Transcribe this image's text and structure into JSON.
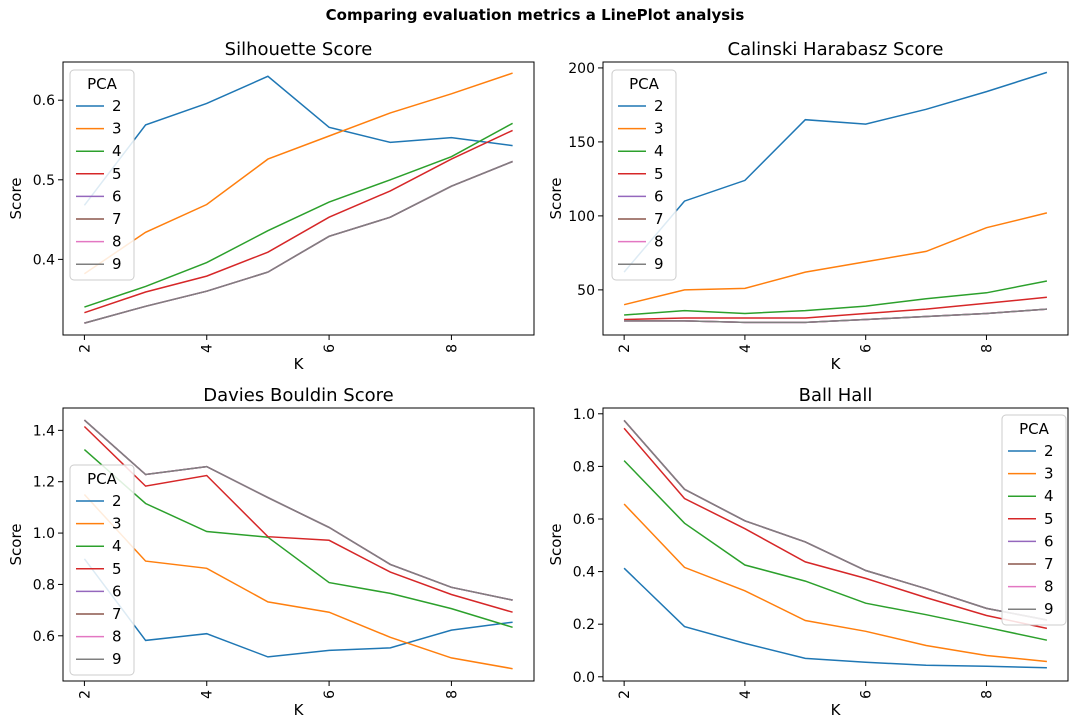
{
  "suptitle": "Comparing evaluation metrics a LinePlot analysis",
  "colors": {
    "2": "#1f77b4",
    "3": "#ff7f0e",
    "4": "#2ca02c",
    "5": "#d62728",
    "6": "#9467bd",
    "7": "#8c564b",
    "8": "#e377c2",
    "9": "#7f7f7f"
  },
  "chart_data": [
    {
      "type": "line",
      "title": "Silhouette Score",
      "xlabel": "K",
      "ylabel": "Score",
      "x": [
        2,
        3,
        4,
        5,
        6,
        7,
        8,
        9
      ],
      "xlim": [
        1.65,
        9.35
      ],
      "ylim": [
        0.305,
        0.648
      ],
      "xticks": [
        2,
        4,
        6,
        8
      ],
      "yticks": [
        0.4,
        0.5,
        0.6
      ],
      "ytick_labels": [
        "0.4",
        "0.5",
        "0.6"
      ],
      "legend": {
        "title": "PCA",
        "placement": "upper left"
      },
      "series": [
        {
          "name": "2",
          "values": [
            0.468,
            0.569,
            0.596,
            0.63,
            0.566,
            0.547,
            0.553,
            0.543
          ]
        },
        {
          "name": "3",
          "values": [
            0.382,
            0.434,
            0.469,
            0.526,
            0.555,
            0.584,
            0.608,
            0.634
          ]
        },
        {
          "name": "4",
          "values": [
            0.34,
            0.366,
            0.396,
            0.436,
            0.472,
            0.5,
            0.529,
            0.571
          ]
        },
        {
          "name": "5",
          "values": [
            0.333,
            0.359,
            0.379,
            0.409,
            0.453,
            0.486,
            0.526,
            0.562
          ]
        },
        {
          "name": "6",
          "values": [
            0.32,
            0.341,
            0.36,
            0.384,
            0.429,
            0.453,
            0.492,
            0.523
          ]
        },
        {
          "name": "7",
          "values": [
            0.32,
            0.341,
            0.36,
            0.384,
            0.429,
            0.453,
            0.492,
            0.523
          ]
        },
        {
          "name": "8",
          "values": [
            0.32,
            0.341,
            0.36,
            0.384,
            0.429,
            0.453,
            0.492,
            0.523
          ]
        },
        {
          "name": "9",
          "values": [
            0.32,
            0.341,
            0.36,
            0.384,
            0.429,
            0.453,
            0.492,
            0.523
          ]
        }
      ]
    },
    {
      "type": "line",
      "title": "Calinski Harabasz Score",
      "xlabel": "K",
      "ylabel": "Score",
      "x": [
        2,
        3,
        4,
        5,
        6,
        7,
        8,
        9
      ],
      "xlim": [
        1.65,
        9.35
      ],
      "ylim": [
        19.5,
        204
      ],
      "xticks": [
        2,
        4,
        6,
        8
      ],
      "yticks": [
        50,
        100,
        150,
        200
      ],
      "ytick_labels": [
        "50",
        "100",
        "150",
        "200"
      ],
      "legend": {
        "title": "PCA",
        "placement": "upper left"
      },
      "series": [
        {
          "name": "2",
          "values": [
            62,
            110,
            124,
            165,
            162,
            172,
            184,
            197
          ]
        },
        {
          "name": "3",
          "values": [
            40,
            50,
            51,
            62,
            69,
            76,
            92,
            102
          ]
        },
        {
          "name": "4",
          "values": [
            33,
            36,
            34,
            36,
            39,
            44,
            48,
            56
          ]
        },
        {
          "name": "5",
          "values": [
            30,
            31,
            31,
            31,
            34,
            37,
            41,
            45
          ]
        },
        {
          "name": "6",
          "values": [
            29,
            29,
            28,
            28,
            30,
            32,
            34,
            37
          ]
        },
        {
          "name": "7",
          "values": [
            29,
            29,
            28,
            28,
            30,
            32,
            34,
            37
          ]
        },
        {
          "name": "8",
          "values": [
            29,
            29,
            28,
            28,
            30,
            32,
            34,
            37
          ]
        },
        {
          "name": "9",
          "values": [
            29,
            29,
            28,
            28,
            30,
            32,
            34,
            37
          ]
        }
      ]
    },
    {
      "type": "line",
      "title": "Davies Bouldin Score",
      "xlabel": "K",
      "ylabel": "Score",
      "x": [
        2,
        3,
        4,
        5,
        6,
        7,
        8,
        9
      ],
      "xlim": [
        1.65,
        9.35
      ],
      "ylim": [
        0.424,
        1.487
      ],
      "xticks": [
        2,
        4,
        6,
        8
      ],
      "yticks": [
        0.6,
        0.8,
        1.0,
        1.2,
        1.4
      ],
      "ytick_labels": [
        "0.6",
        "0.8",
        "1.0",
        "1.2",
        "1.4"
      ],
      "legend": {
        "title": "PCA",
        "placement": "center left"
      },
      "series": [
        {
          "name": "2",
          "values": [
            0.9,
            0.582,
            0.608,
            0.518,
            0.543,
            0.553,
            0.622,
            0.653
          ]
        },
        {
          "name": "3",
          "values": [
            1.15,
            0.891,
            0.863,
            0.732,
            0.692,
            0.594,
            0.514,
            0.472
          ]
        },
        {
          "name": "4",
          "values": [
            1.325,
            1.115,
            1.006,
            0.984,
            0.807,
            0.765,
            0.706,
            0.633
          ]
        },
        {
          "name": "5",
          "values": [
            1.415,
            1.183,
            1.224,
            0.986,
            0.972,
            0.848,
            0.761,
            0.692
          ]
        },
        {
          "name": "6",
          "values": [
            1.44,
            1.228,
            1.259,
            1.138,
            1.022,
            0.878,
            0.789,
            0.739
          ]
        },
        {
          "name": "7",
          "values": [
            1.44,
            1.228,
            1.259,
            1.138,
            1.022,
            0.878,
            0.789,
            0.739
          ]
        },
        {
          "name": "8",
          "values": [
            1.44,
            1.228,
            1.259,
            1.138,
            1.022,
            0.878,
            0.789,
            0.739
          ]
        },
        {
          "name": "9",
          "values": [
            1.44,
            1.228,
            1.259,
            1.138,
            1.022,
            0.878,
            0.789,
            0.739
          ]
        }
      ]
    },
    {
      "type": "line",
      "title": "Ball Hall",
      "xlabel": "K",
      "ylabel": "Score",
      "x": [
        2,
        3,
        4,
        5,
        6,
        7,
        8,
        9
      ],
      "xlim": [
        1.65,
        9.35
      ],
      "ylim": [
        -0.016,
        1.022
      ],
      "xticks": [
        2,
        4,
        6,
        8
      ],
      "yticks": [
        0.0,
        0.2,
        0.4,
        0.6,
        0.8,
        1.0
      ],
      "ytick_labels": [
        "0.0",
        "0.2",
        "0.4",
        "0.6",
        "0.8",
        "1.0"
      ],
      "legend": {
        "title": "PCA",
        "placement": "upper right"
      },
      "series": [
        {
          "name": "2",
          "values": [
            0.413,
            0.191,
            0.127,
            0.07,
            0.055,
            0.044,
            0.04,
            0.034
          ]
        },
        {
          "name": "3",
          "values": [
            0.657,
            0.416,
            0.327,
            0.214,
            0.173,
            0.119,
            0.081,
            0.058
          ]
        },
        {
          "name": "4",
          "values": [
            0.822,
            0.584,
            0.425,
            0.364,
            0.28,
            0.236,
            0.188,
            0.139
          ]
        },
        {
          "name": "5",
          "values": [
            0.945,
            0.678,
            0.563,
            0.437,
            0.374,
            0.301,
            0.233,
            0.184
          ]
        },
        {
          "name": "6",
          "values": [
            0.975,
            0.713,
            0.593,
            0.513,
            0.404,
            0.335,
            0.26,
            0.216
          ]
        },
        {
          "name": "7",
          "values": [
            0.975,
            0.713,
            0.593,
            0.513,
            0.404,
            0.335,
            0.26,
            0.216
          ]
        },
        {
          "name": "8",
          "values": [
            0.975,
            0.713,
            0.593,
            0.513,
            0.404,
            0.335,
            0.26,
            0.216
          ]
        },
        {
          "name": "9",
          "values": [
            0.975,
            0.713,
            0.593,
            0.513,
            0.404,
            0.335,
            0.26,
            0.216
          ]
        }
      ]
    }
  ]
}
